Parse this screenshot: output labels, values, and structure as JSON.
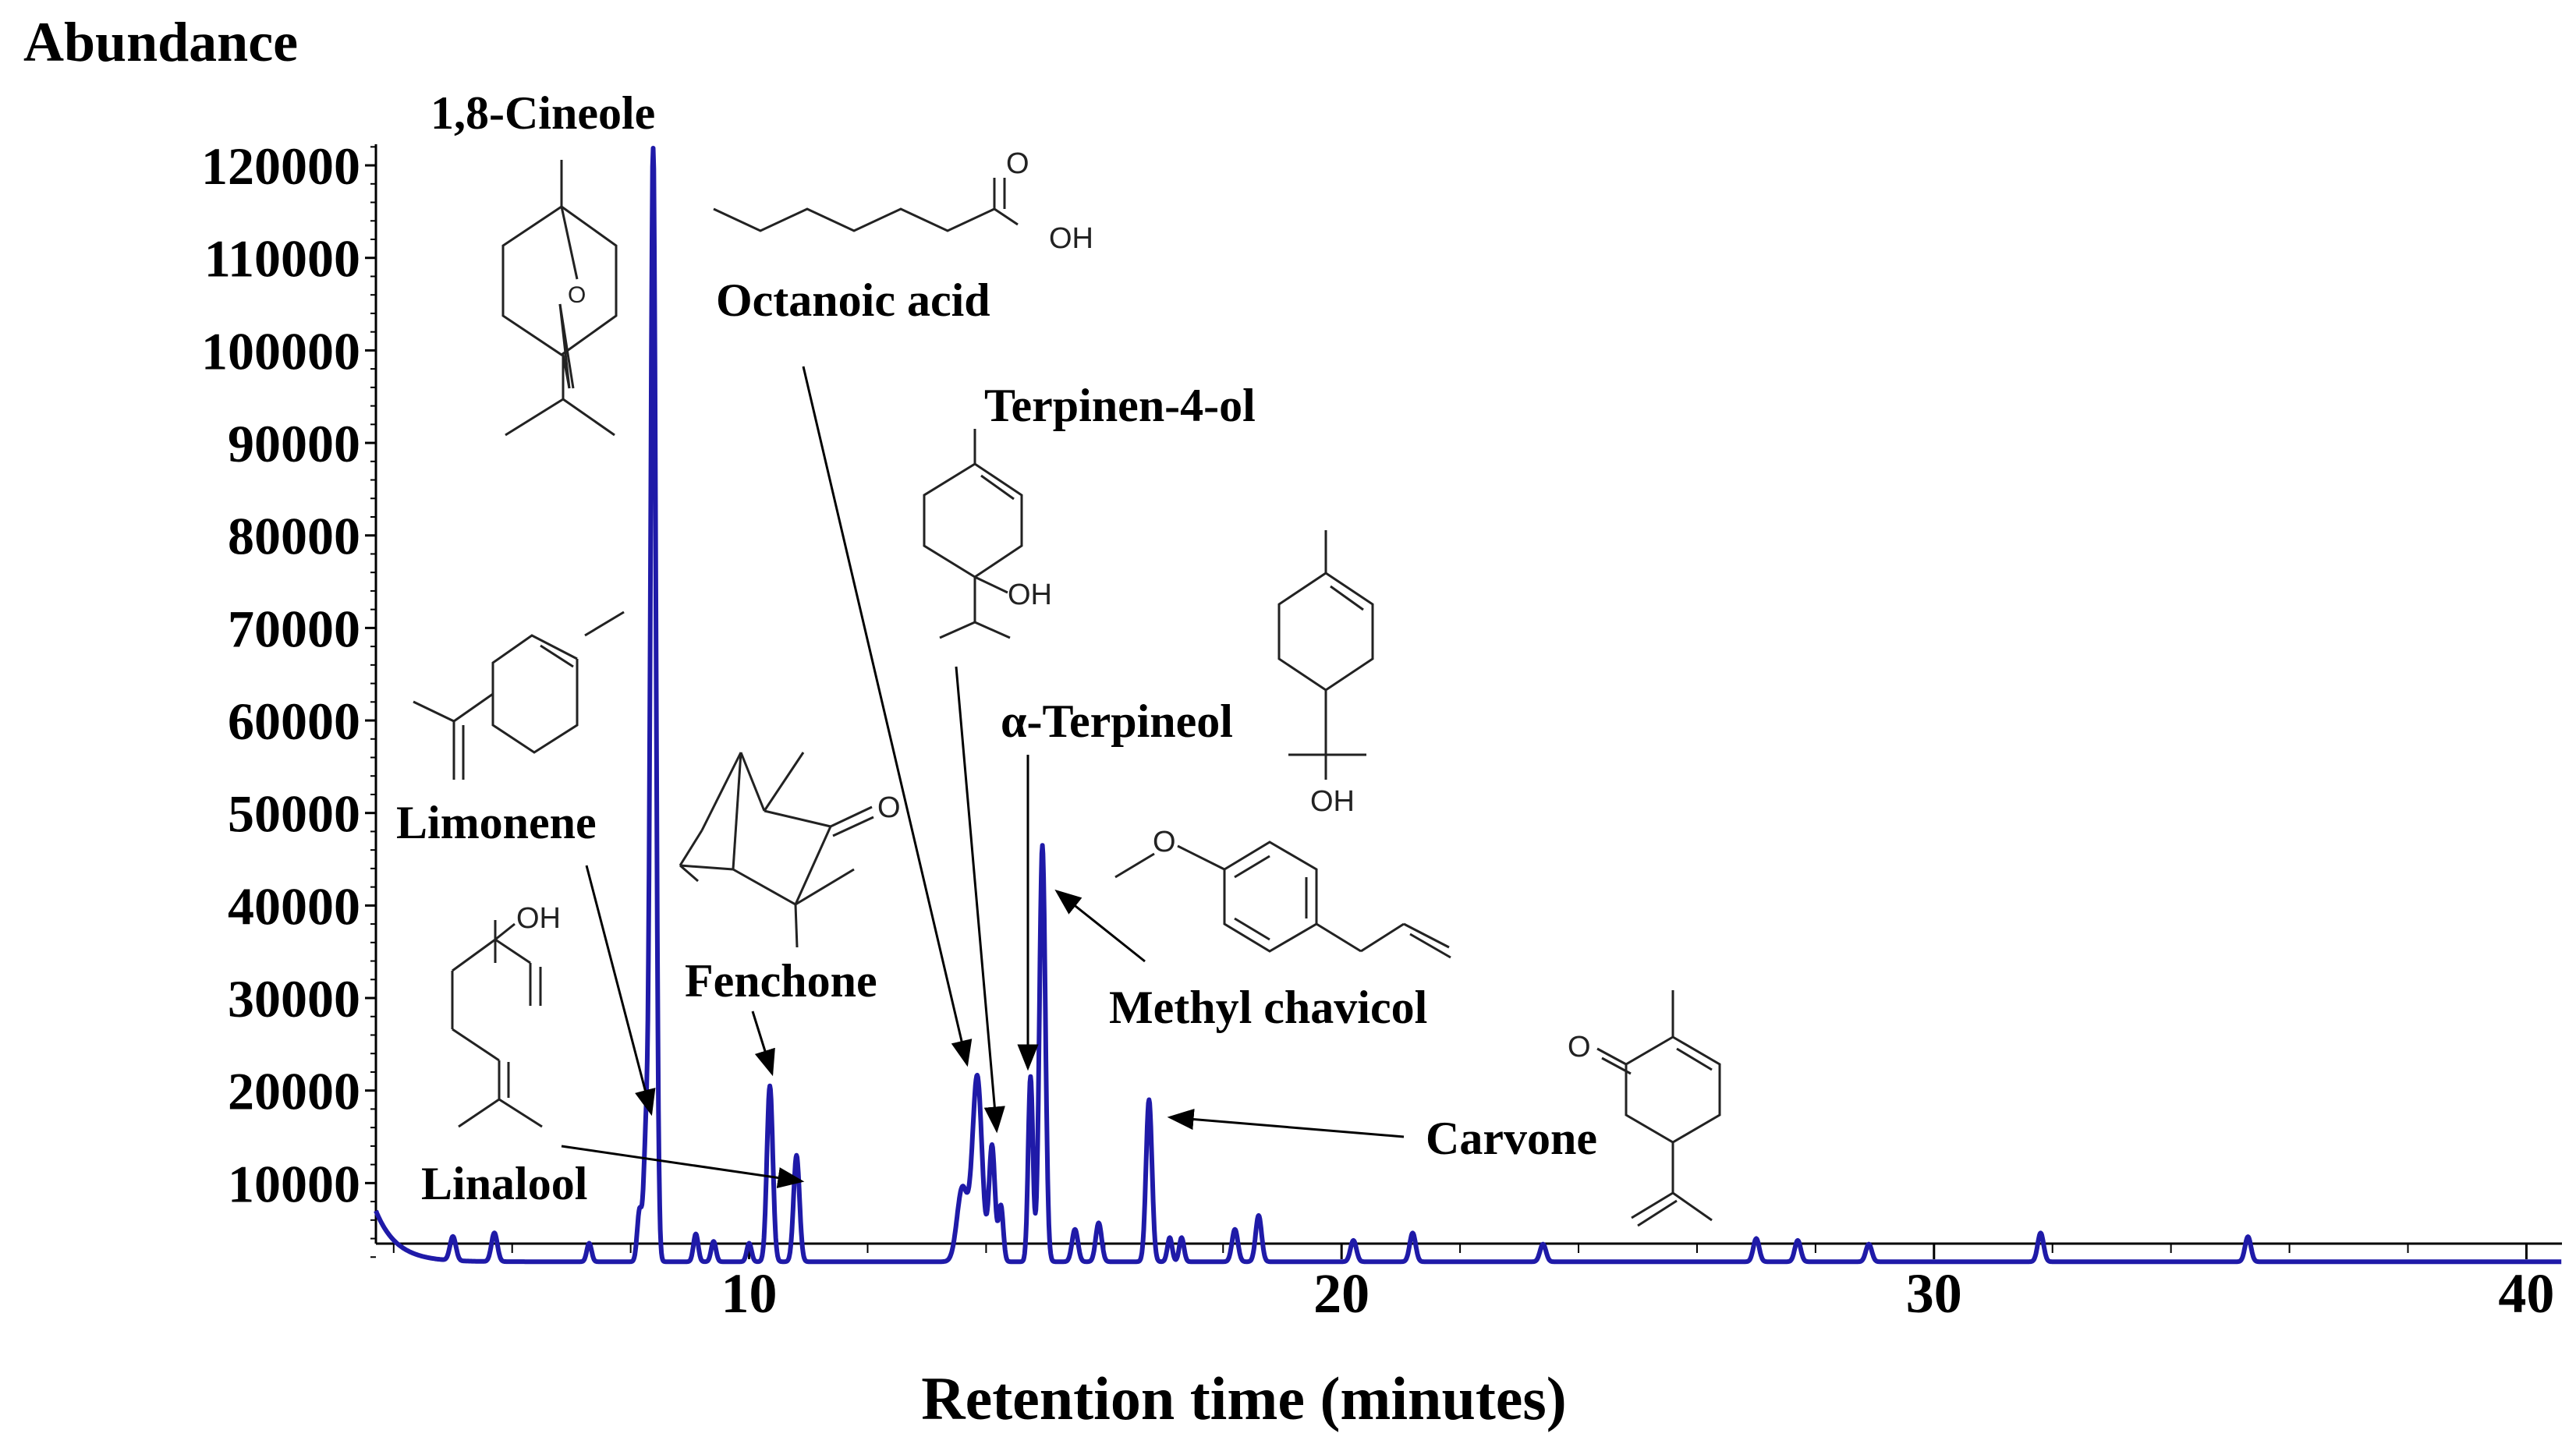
{
  "chart_data": {
    "type": "line",
    "title": "",
    "ylabel": "Abundance",
    "xlabel": "Retention time (minutes)",
    "xlim": [
      3.7,
      40.6
    ],
    "ylim": [
      0,
      126000
    ],
    "x_ticks": [
      10,
      20,
      30,
      40
    ],
    "y_ticks": [
      10000,
      20000,
      30000,
      40000,
      50000,
      60000,
      70000,
      80000,
      90000,
      100000,
      110000,
      120000
    ],
    "baseline": 1500,
    "line_color": "#1f1aa8",
    "grid": false,
    "peaks": [
      {
        "x": 5.0,
        "y": 2600,
        "w": 0.05
      },
      {
        "x": 5.7,
        "y": 3100,
        "w": 0.05
      },
      {
        "x": 7.3,
        "y": 2000,
        "w": 0.04
      },
      {
        "x": 8.15,
        "y": 5500,
        "w": 0.04
      },
      {
        "x": 8.26,
        "y": 13000,
        "w": 0.04
      },
      {
        "x": 8.38,
        "y": 121000,
        "w": 0.045
      },
      {
        "x": 9.1,
        "y": 3000,
        "w": 0.04
      },
      {
        "x": 9.4,
        "y": 2200,
        "w": 0.04
      },
      {
        "x": 10.0,
        "y": 2000,
        "w": 0.04
      },
      {
        "x": 10.35,
        "y": 19000,
        "w": 0.05
      },
      {
        "x": 10.8,
        "y": 11500,
        "w": 0.05
      },
      {
        "x": 13.6,
        "y": 8000,
        "w": 0.09
      },
      {
        "x": 13.85,
        "y": 20000,
        "w": 0.08
      },
      {
        "x": 14.1,
        "y": 12500,
        "w": 0.05
      },
      {
        "x": 14.25,
        "y": 6000,
        "w": 0.04
      },
      {
        "x": 14.75,
        "y": 20000,
        "w": 0.04
      },
      {
        "x": 14.95,
        "y": 45000,
        "w": 0.05
      },
      {
        "x": 15.5,
        "y": 3500,
        "w": 0.05
      },
      {
        "x": 15.9,
        "y": 4200,
        "w": 0.05
      },
      {
        "x": 16.75,
        "y": 17500,
        "w": 0.05
      },
      {
        "x": 17.1,
        "y": 2600,
        "w": 0.04
      },
      {
        "x": 17.3,
        "y": 2600,
        "w": 0.04
      },
      {
        "x": 18.2,
        "y": 3500,
        "w": 0.05
      },
      {
        "x": 18.6,
        "y": 5000,
        "w": 0.05
      },
      {
        "x": 20.2,
        "y": 2300,
        "w": 0.05
      },
      {
        "x": 21.2,
        "y": 3100,
        "w": 0.05
      },
      {
        "x": 23.4,
        "y": 1900,
        "w": 0.05
      },
      {
        "x": 27.0,
        "y": 2500,
        "w": 0.05
      },
      {
        "x": 27.7,
        "y": 2300,
        "w": 0.05
      },
      {
        "x": 28.9,
        "y": 1900,
        "w": 0.05
      },
      {
        "x": 31.8,
        "y": 3100,
        "w": 0.05
      },
      {
        "x": 35.3,
        "y": 2700,
        "w": 0.05
      }
    ],
    "annotations": [
      {
        "label": "1,8-Cineole"
      },
      {
        "label": "Limonene"
      },
      {
        "label": "Linalool"
      },
      {
        "label": "Fenchone"
      },
      {
        "label": "Octanoic acid"
      },
      {
        "label": "Terpinen-4-ol"
      },
      {
        "label": "α-Terpineol"
      },
      {
        "label": "Methyl chavicol"
      },
      {
        "label": "Carvone"
      }
    ]
  },
  "structure_labels": {
    "oxygen_cineole": "O",
    "octanoic_oh": "OH",
    "octanoic_o": "O",
    "terpinen_oh": "OH",
    "terpineol_oh": "OH",
    "linalool_oh": "OH",
    "fenchone_o": "O",
    "carvone_o": "O"
  }
}
